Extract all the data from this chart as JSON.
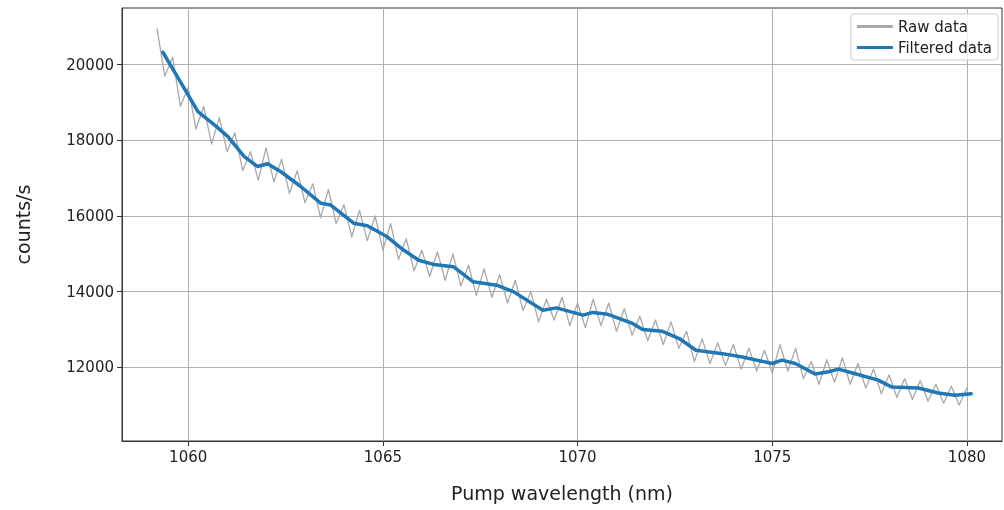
{
  "chart_data": {
    "type": "line",
    "xlabel": "Pump wavelength (nm)",
    "ylabel": "counts/s",
    "xlim": [
      1058.3,
      1080.9
    ],
    "ylim": [
      10050,
      21500
    ],
    "xticks": [
      1060,
      1065,
      1070,
      1075,
      1080
    ],
    "yticks": [
      12000,
      14000,
      16000,
      18000,
      20000
    ],
    "grid": true,
    "legend": "top right",
    "marker": "none",
    "line_style": "solid",
    "series": [
      {
        "name": "Raw data",
        "color": "#a9a9a9",
        "x": [
          1059.2,
          1059.4,
          1059.6,
          1059.8,
          1060.0,
          1060.2,
          1060.4,
          1060.6,
          1060.8,
          1061.0,
          1061.2,
          1061.4,
          1061.6,
          1061.8,
          1062.0,
          1062.2,
          1062.4,
          1062.6,
          1062.8,
          1063.0,
          1063.2,
          1063.4,
          1063.6,
          1063.8,
          1064.0,
          1064.2,
          1064.4,
          1064.6,
          1064.8,
          1065.0,
          1065.2,
          1065.4,
          1065.6,
          1065.8,
          1066.0,
          1066.2,
          1066.4,
          1066.6,
          1066.8,
          1067.0,
          1067.2,
          1067.4,
          1067.6,
          1067.8,
          1068.0,
          1068.2,
          1068.4,
          1068.6,
          1068.8,
          1069.0,
          1069.2,
          1069.4,
          1069.6,
          1069.8,
          1070.0,
          1070.2,
          1070.4,
          1070.6,
          1070.8,
          1071.0,
          1071.2,
          1071.4,
          1071.6,
          1071.8,
          1072.0,
          1072.2,
          1072.4,
          1072.6,
          1072.8,
          1073.0,
          1073.2,
          1073.4,
          1073.6,
          1073.8,
          1074.0,
          1074.2,
          1074.4,
          1074.6,
          1074.8,
          1075.0,
          1075.2,
          1075.4,
          1075.6,
          1075.8,
          1076.0,
          1076.2,
          1076.4,
          1076.6,
          1076.8,
          1077.0,
          1077.2,
          1077.4,
          1077.6,
          1077.8,
          1078.0,
          1078.2,
          1078.4,
          1078.6,
          1078.8,
          1079.0,
          1079.2,
          1079.4,
          1079.6,
          1079.8,
          1080.0
        ],
        "values": [
          20950,
          19700,
          20200,
          18900,
          19400,
          18300,
          18900,
          17900,
          18600,
          17700,
          18200,
          17200,
          17700,
          16950,
          17800,
          16900,
          17500,
          16600,
          17200,
          16350,
          16850,
          15950,
          16700,
          15800,
          16300,
          15450,
          16150,
          15350,
          16000,
          15100,
          15800,
          14850,
          15400,
          14550,
          15100,
          14400,
          15050,
          14300,
          15000,
          14150,
          14700,
          13900,
          14600,
          13850,
          14450,
          13700,
          14300,
          13500,
          14000,
          13200,
          13800,
          13250,
          13850,
          13100,
          13700,
          13050,
          13800,
          13100,
          13700,
          12950,
          13550,
          12850,
          13350,
          12700,
          13250,
          12600,
          13200,
          12500,
          12950,
          12150,
          12750,
          12100,
          12650,
          12050,
          12600,
          11950,
          12500,
          11900,
          12450,
          11850,
          12600,
          11900,
          12500,
          11700,
          12150,
          11550,
          12200,
          11600,
          12250,
          11550,
          12100,
          11450,
          11950,
          11300,
          11800,
          11200,
          11700,
          11150,
          11650,
          11100,
          11550,
          11050,
          11500,
          11000,
          11450
        ]
      },
      {
        "name": "Filtered data",
        "color": "#1f77b4",
        "x": [
          1059.35,
          1059.77,
          1060.25,
          1060.72,
          1061.02,
          1061.44,
          1061.78,
          1062.04,
          1062.38,
          1062.89,
          1063.4,
          1063.66,
          1064.25,
          1064.6,
          1065.11,
          1065.53,
          1065.92,
          1066.3,
          1066.81,
          1067.32,
          1067.92,
          1068.35,
          1069.11,
          1069.46,
          1070.14,
          1070.39,
          1070.78,
          1071.41,
          1071.67,
          1072.18,
          1072.61,
          1073.04,
          1073.72,
          1074.23,
          1075.0,
          1075.25,
          1075.59,
          1076.1,
          1076.45,
          1076.7,
          1077.13,
          1077.72,
          1078.06,
          1078.75,
          1079.26,
          1079.69,
          1080.11
        ],
        "values": [
          20330,
          19600,
          18760,
          18370,
          18100,
          17570,
          17310,
          17380,
          17170,
          16780,
          16340,
          16290,
          15810,
          15740,
          15450,
          15100,
          14830,
          14720,
          14660,
          14260,
          14170,
          14000,
          13510,
          13570,
          13380,
          13450,
          13400,
          13160,
          13000,
          12950,
          12760,
          12450,
          12360,
          12270,
          12100,
          12190,
          12100,
          11820,
          11880,
          11950,
          11830,
          11660,
          11480,
          11450,
          11320,
          11260,
          11300
        ]
      }
    ]
  }
}
